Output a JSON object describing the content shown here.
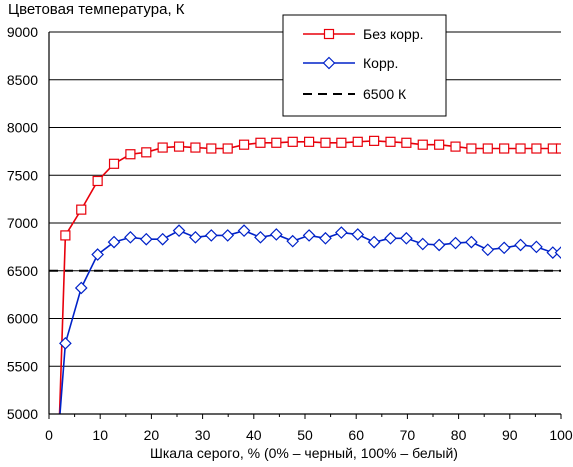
{
  "chart_data": {
    "type": "line",
    "title": "Цветовая температура, К",
    "xlabel": "Шкала серого, % (0% – черный, 100% – белый)",
    "ylabel": "",
    "xlim": [
      0,
      100
    ],
    "ylim": [
      5000,
      9000
    ],
    "xticks": [
      "0",
      "10",
      "20",
      "30",
      "40",
      "50",
      "60",
      "70",
      "80",
      "90",
      "100"
    ],
    "yticks": [
      "5000",
      "5500",
      "6000",
      "6500",
      "7000",
      "7500",
      "8000",
      "8500",
      "9000"
    ],
    "grid": "horizontal",
    "legend_position": "top-right",
    "series": [
      {
        "name": "Без корр.",
        "color": "#e8000b",
        "marker": "square",
        "x": [
          2,
          3.2,
          6.3,
          9.5,
          12.7,
          15.9,
          19,
          22.2,
          25.4,
          28.6,
          31.7,
          34.9,
          38.1,
          41.3,
          44.4,
          47.6,
          50.8,
          54,
          57.1,
          60.3,
          63.5,
          66.7,
          69.8,
          73,
          76.2,
          79.4,
          82.5,
          85.7,
          88.9,
          92.1,
          95.2,
          98.4,
          100
        ],
        "values": [
          4900,
          6870,
          7140,
          7440,
          7620,
          7720,
          7740,
          7790,
          7800,
          7790,
          7780,
          7780,
          7820,
          7840,
          7840,
          7850,
          7850,
          7840,
          7840,
          7850,
          7860,
          7850,
          7840,
          7820,
          7820,
          7800,
          7780,
          7780,
          7780,
          7780,
          7780,
          7780,
          7780
        ]
      },
      {
        "name": "Корр.",
        "color": "#0022c8",
        "marker": "diamond",
        "x": [
          2,
          3.2,
          6.3,
          9.5,
          12.7,
          15.9,
          19,
          22.2,
          25.4,
          28.6,
          31.7,
          34.9,
          38.1,
          41.3,
          44.4,
          47.6,
          50.8,
          54,
          57.1,
          60.3,
          63.5,
          66.7,
          69.8,
          73,
          76.2,
          79.4,
          82.5,
          85.7,
          88.9,
          92.1,
          95.2,
          98.4,
          100
        ],
        "values": [
          4900,
          5740,
          6320,
          6670,
          6800,
          6850,
          6830,
          6830,
          6920,
          6850,
          6870,
          6870,
          6920,
          6850,
          6880,
          6810,
          6870,
          6840,
          6900,
          6880,
          6800,
          6840,
          6840,
          6780,
          6770,
          6790,
          6800,
          6720,
          6740,
          6770,
          6750,
          6690,
          6690
        ]
      },
      {
        "name": "6500 К",
        "color": "#000000",
        "marker": "none",
        "dashed": true,
        "x": [
          0,
          100
        ],
        "values": [
          6500,
          6500
        ]
      }
    ]
  }
}
